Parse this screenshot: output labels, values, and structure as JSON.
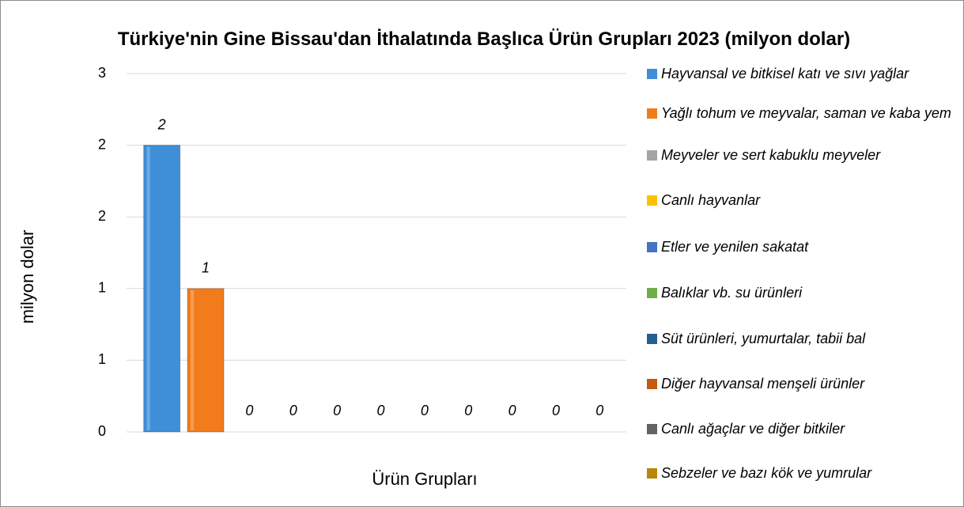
{
  "chart_data": {
    "type": "bar",
    "title": "Türkiye'nin Gine Bissau'dan İthalatında Başlıca Ürün Grupları 2023 (milyon dolar)",
    "x_label": "Ürün Grupları",
    "y_label": "milyon dolar",
    "categories": [
      "Hayvansal ve bitkisel katı ve sıvı yağlar",
      "Yağlı tohum ve meyvalar, saman ve kaba yem",
      "Meyveler ve sert kabuklu meyveler",
      "Canlı hayvanlar",
      "Etler ve yenilen sakatat",
      "Balıklar vb. su ürünleri",
      "Süt ürünleri, yumurtalar, tabii bal",
      "Diğer hayvansal menşeli ürünler",
      "Canlı ağaçlar ve diğer bitkiler",
      "Sebzeler ve bazı kök ve yumrular",
      null
    ],
    "values": [
      2.4,
      1.2,
      0,
      0,
      0,
      0,
      0,
      0,
      0,
      0,
      0
    ],
    "value_labels": [
      "2",
      "1",
      "0",
      "0",
      "0",
      "0",
      "0",
      "0",
      "0",
      "0",
      "0"
    ],
    "colors": [
      "#3f8fd8",
      "#f27c1c",
      "#a5a5a5",
      "#ffc000",
      "#4472c4",
      "#70ad47",
      "#255e91",
      "#c55a11",
      "#636363",
      "#b8860b",
      "#5b9bd5"
    ],
    "ylim": [
      0,
      3
    ],
    "yticks": [
      0,
      {
        "value": 0.6,
        "label": "1"
      },
      {
        "value": 1.2,
        "label": "1"
      },
      {
        "value": 1.8,
        "label": "2"
      },
      {
        "value": 2.4,
        "label": "2"
      },
      3
    ],
    "grid": true,
    "legend": "right"
  }
}
